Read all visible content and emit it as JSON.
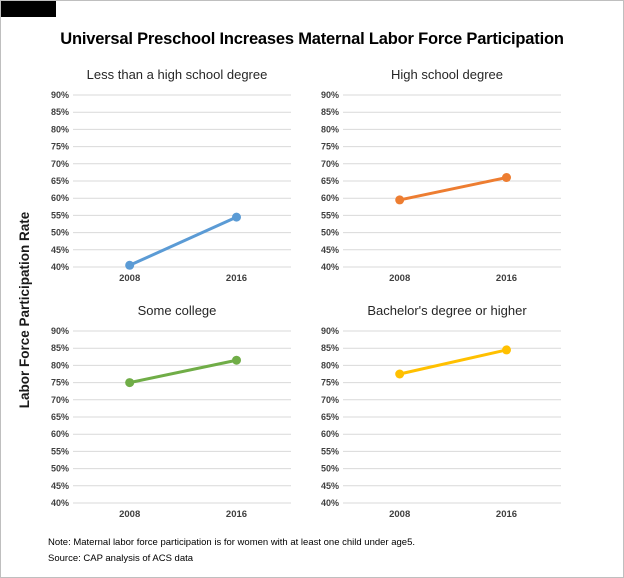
{
  "header": {
    "title": "Universal Preschool Increases Maternal Labor Force Participation"
  },
  "y_axis_label": "Labor Force Participation Rate",
  "footer": {
    "note": "Note: Maternal labor force participation is for women with at least one child under age5.",
    "source": "Source: CAP analysis of ACS data"
  },
  "style": {
    "grid_color": "#D9D9D9",
    "tick_label_color": "#404040",
    "subplot_title_color": "#262626",
    "page_border_color": "#BFBFBF",
    "background_color": "#FFFFFF"
  },
  "chart_data": [
    {
      "type": "line",
      "title": "Less than a high school degree",
      "categories": [
        "2008",
        "2016"
      ],
      "values": [
        40.5,
        54.5
      ],
      "color": "#5B9BD5",
      "ylim": [
        40,
        90
      ],
      "ytick_step": 5,
      "ytick_suffix": "%",
      "grid": true,
      "legend": "none"
    },
    {
      "type": "line",
      "title": "High school degree",
      "categories": [
        "2008",
        "2016"
      ],
      "values": [
        59.5,
        66
      ],
      "color": "#ED7D31",
      "ylim": [
        40,
        90
      ],
      "ytick_step": 5,
      "ytick_suffix": "%",
      "grid": true,
      "legend": "none"
    },
    {
      "type": "line",
      "title": "Some college",
      "categories": [
        "2008",
        "2016"
      ],
      "values": [
        75,
        81.5
      ],
      "color": "#70AD47",
      "ylim": [
        40,
        90
      ],
      "ytick_step": 5,
      "ytick_suffix": "%",
      "grid": true,
      "legend": "none"
    },
    {
      "type": "line",
      "title": "Bachelor's degree or higher",
      "categories": [
        "2008",
        "2016"
      ],
      "values": [
        77.5,
        84.5
      ],
      "color": "#FFC000",
      "ylim": [
        40,
        90
      ],
      "ytick_step": 5,
      "ytick_suffix": "%",
      "grid": true,
      "legend": "none"
    }
  ]
}
